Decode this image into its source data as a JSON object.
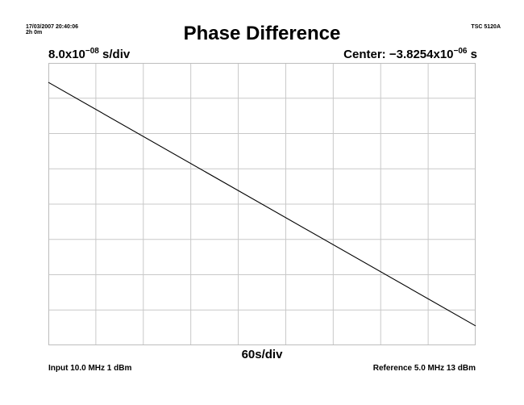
{
  "header": {
    "timestamp": "17/03/2007 20:40:06",
    "duration": "2h 0m",
    "instrument": "TSC 5120A"
  },
  "chart_data": {
    "type": "line",
    "title": "Phase Difference",
    "y_scale": {
      "prefix": "8.0x10",
      "exponent": "−08",
      "suffix": " s/div",
      "per_div": 8e-08,
      "divisions": 8
    },
    "center": {
      "prefix": "Center: −3.8254x10",
      "exponent": "−06",
      "suffix": " s",
      "value": -3.8254e-06
    },
    "x_scale": {
      "label": "60s/div",
      "per_div": 60,
      "divisions": 9
    },
    "grid": true,
    "x_unit": "s",
    "y_unit": "s",
    "series": [
      {
        "x": [
          0,
          540
        ],
        "y": [
          -3.5494e-06,
          -4.1014e-06
        ]
      }
    ]
  },
  "footer": {
    "input": "Input 10.0 MHz 1 dBm",
    "reference": "Reference 5.0 MHz 13 dBm"
  }
}
